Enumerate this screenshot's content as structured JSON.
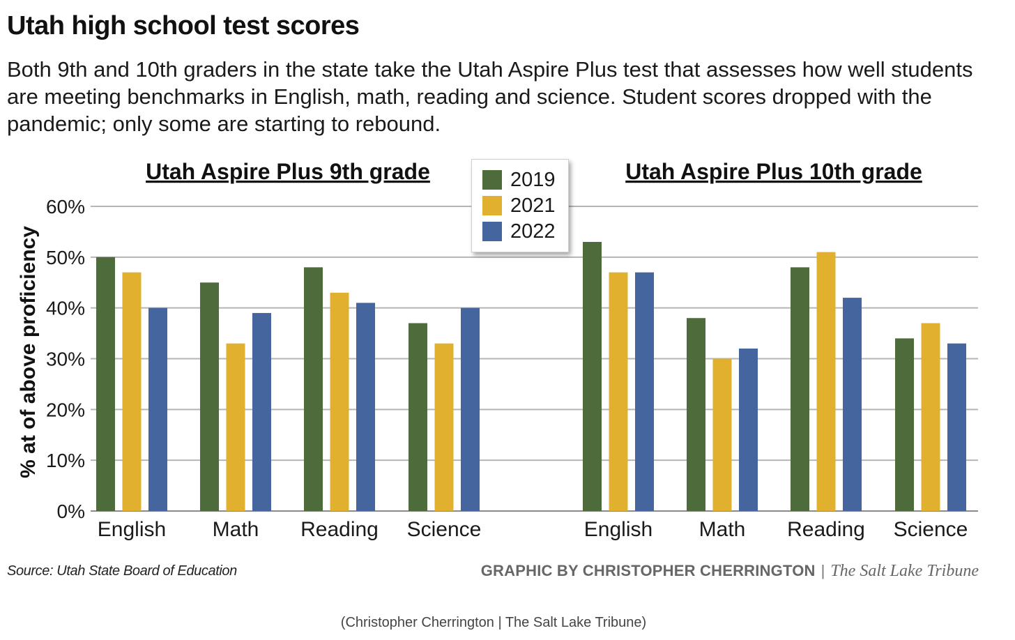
{
  "header": {
    "title": "Utah high school test scores",
    "subtitle": "Both 9th and 10th graders in the state take the Utah Aspire Plus test that assesses how well students are meeting benchmarks in English, math, reading and science. Student scores dropped with the pandemic; only some are starting to rebound."
  },
  "legend": [
    {
      "label": "2019",
      "color": "#4e6b3c"
    },
    {
      "label": "2021",
      "color": "#e0b02e"
    },
    {
      "label": "2022",
      "color": "#44659e"
    }
  ],
  "chart_data": [
    {
      "type": "bar",
      "title": "Utah Aspire Plus 9th grade",
      "ylabel": "% at of above proficiency",
      "ylim": [
        0,
        60
      ],
      "yticks": [
        "0%",
        "10%",
        "20%",
        "30%",
        "40%",
        "50%",
        "60%"
      ],
      "grid": true,
      "legend_position": "top-center",
      "categories": [
        "English",
        "Math",
        "Reading",
        "Science"
      ],
      "series": [
        {
          "name": "2019",
          "values": [
            50,
            45,
            48,
            37
          ]
        },
        {
          "name": "2021",
          "values": [
            47,
            33,
            43,
            33
          ]
        },
        {
          "name": "2022",
          "values": [
            40,
            39,
            41,
            40
          ]
        }
      ]
    },
    {
      "type": "bar",
      "title": "Utah Aspire Plus 10th grade",
      "ylim": [
        0,
        60
      ],
      "grid": true,
      "categories": [
        "English",
        "Math",
        "Reading",
        "Science"
      ],
      "series": [
        {
          "name": "2019",
          "values": [
            53,
            38,
            48,
            34
          ]
        },
        {
          "name": "2021",
          "values": [
            47,
            30,
            51,
            37
          ]
        },
        {
          "name": "2022",
          "values": [
            47,
            32,
            42,
            33
          ]
        }
      ]
    }
  ],
  "footer": {
    "source": "Source: Utah State Board of Education",
    "credit_by": "GRAPHIC BY CHRISTOPHER CHERRINGTON",
    "credit_sep": "|",
    "credit_pub": "The Salt Lake Tribune",
    "caption": "(Christopher Cherrington | The Salt Lake Tribune)"
  }
}
